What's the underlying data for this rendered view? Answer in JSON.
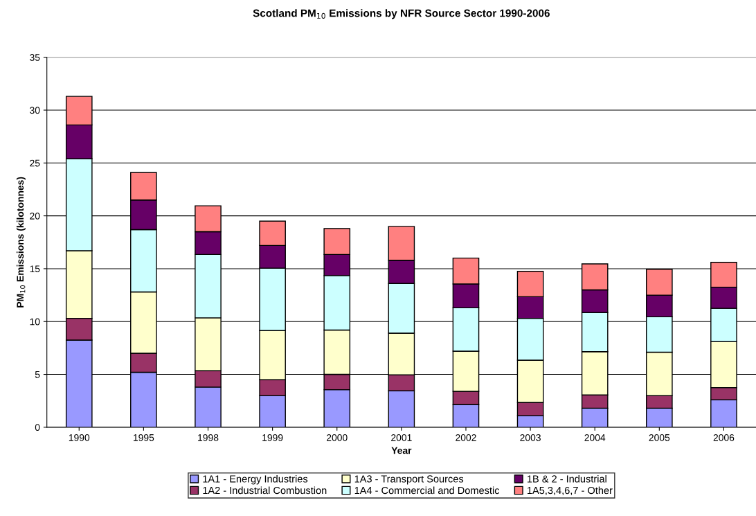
{
  "chart_data": {
    "type": "bar",
    "stacked": true,
    "title": "Scotland PM$_{10}$ Emissions by NFR Source Sector 1990-2006",
    "xlabel": "Year",
    "ylabel": "PM$_{10}$ Emissions (kilotonnes)",
    "categories": [
      "1990",
      "1995",
      "1998",
      "1999",
      "2000",
      "2001",
      "2002",
      "2003",
      "2004",
      "2005",
      "2006"
    ],
    "series": [
      {
        "name": "1A1 - Energy Industries",
        "color": "#9999ff",
        "values": [
          8.25,
          5.2,
          3.8,
          3.0,
          3.55,
          3.45,
          2.15,
          1.1,
          1.8,
          1.8,
          2.6
        ]
      },
      {
        "name": "1A2 - Industrial Combustion",
        "color": "#993366",
        "values": [
          2.05,
          1.8,
          1.55,
          1.5,
          1.45,
          1.5,
          1.25,
          1.25,
          1.25,
          1.2,
          1.15
        ]
      },
      {
        "name": "1A3 - Transport Sources",
        "color": "#ffffcc",
        "values": [
          6.4,
          5.8,
          5.0,
          4.65,
          4.2,
          3.95,
          3.8,
          4.0,
          4.1,
          4.1,
          4.35
        ]
      },
      {
        "name": "1A4 - Commercial and Domestic",
        "color": "#ccffff",
        "values": [
          8.7,
          5.9,
          6.0,
          5.9,
          5.15,
          4.7,
          4.1,
          3.95,
          3.7,
          3.35,
          3.15
        ]
      },
      {
        "name": "1B & 2 - Industrial",
        "color": "#660066",
        "values": [
          3.2,
          2.8,
          2.15,
          2.15,
          2.0,
          2.2,
          2.25,
          2.05,
          2.15,
          2.05,
          2.0
        ]
      },
      {
        "name": "1A5,3,4,6,7 - Other",
        "color": "#ff8080",
        "values": [
          2.7,
          2.6,
          2.45,
          2.3,
          2.45,
          3.2,
          2.45,
          2.4,
          2.45,
          2.45,
          2.35
        ]
      }
    ],
    "ylim": [
      0,
      35
    ],
    "yticks": [
      0,
      5,
      10,
      15,
      20,
      25,
      30,
      35
    ],
    "grid": "y",
    "legend": "bottom"
  }
}
